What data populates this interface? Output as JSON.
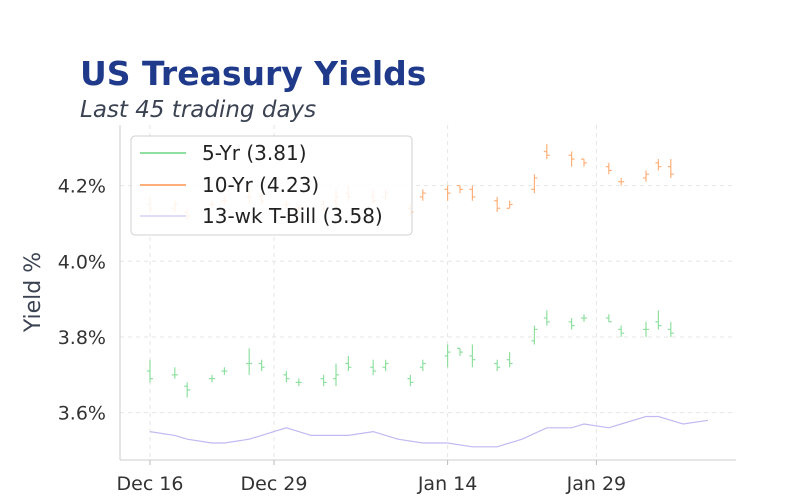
{
  "chart_data": {
    "type": "ohlc",
    "title": "US Treasury Yields",
    "subtitle": "Last 45 trading days",
    "xlabel": "",
    "ylabel": "Yield %",
    "x_tick_labels": [
      "Dec 16",
      "Dec 29",
      "Jan 14",
      "Jan 29"
    ],
    "x_tick_index": [
      0,
      10,
      24,
      36
    ],
    "y_ticks": [
      3.6,
      3.8,
      4.0,
      4.2
    ],
    "y_tick_labels": [
      "3.6%",
      "3.8%",
      "4.0%",
      "4.2%"
    ],
    "ylim": [
      3.475,
      4.36
    ],
    "grid": true,
    "legend_position": "top-left",
    "colors": {
      "five_yr": "#8fe0a0",
      "ten_yr": "#ffb07a",
      "tbill": "#c4b8f2",
      "title": "#1f3a8a"
    },
    "series": [
      {
        "name": "5-Yr (3.81)",
        "kind": "ohlc",
        "color": "#8fe0a0",
        "ohlc": [
          [
            3.71,
            3.74,
            3.68,
            3.69
          ],
          [
            3.7,
            3.72,
            3.69,
            3.7
          ],
          [
            3.67,
            3.68,
            3.64,
            3.66
          ],
          [
            3.69,
            3.7,
            3.68,
            3.69
          ],
          [
            3.71,
            3.72,
            3.7,
            3.71
          ],
          [
            3.73,
            3.77,
            3.7,
            3.73
          ],
          [
            3.73,
            3.74,
            3.71,
            3.72
          ],
          [
            3.7,
            3.71,
            3.68,
            3.69
          ],
          [
            3.68,
            3.69,
            3.67,
            3.68
          ],
          [
            3.69,
            3.7,
            3.67,
            3.68
          ],
          [
            3.69,
            3.73,
            3.67,
            3.7
          ],
          [
            3.73,
            3.75,
            3.71,
            3.72
          ],
          [
            3.72,
            3.74,
            3.7,
            3.71
          ],
          [
            3.72,
            3.74,
            3.71,
            3.73
          ],
          [
            3.69,
            3.7,
            3.67,
            3.68
          ],
          [
            3.72,
            3.74,
            3.71,
            3.73
          ],
          [
            3.75,
            3.78,
            3.72,
            3.76
          ],
          [
            3.77,
            3.77,
            3.75,
            3.76
          ],
          [
            3.75,
            3.78,
            3.72,
            3.74
          ],
          [
            3.73,
            3.74,
            3.71,
            3.72
          ],
          [
            3.74,
            3.76,
            3.72,
            3.73
          ],
          [
            3.79,
            3.83,
            3.78,
            3.82
          ],
          [
            3.85,
            3.87,
            3.83,
            3.84
          ],
          [
            3.84,
            3.85,
            3.82,
            3.83
          ],
          [
            3.85,
            3.86,
            3.84,
            3.85
          ],
          [
            3.85,
            3.86,
            3.84,
            3.84
          ],
          [
            3.82,
            3.83,
            3.8,
            3.81
          ],
          [
            3.82,
            3.84,
            3.8,
            3.82
          ],
          [
            3.84,
            3.87,
            3.82,
            3.83
          ],
          [
            3.82,
            3.84,
            3.8,
            3.81
          ]
        ]
      },
      {
        "name": "10-Yr (4.23)",
        "kind": "ohlc",
        "color": "#ffb07a",
        "ohlc": [
          [
            4.15,
            4.17,
            4.13,
            4.14
          ],
          [
            4.14,
            4.16,
            4.13,
            4.15
          ],
          [
            4.13,
            4.14,
            4.11,
            4.12
          ],
          [
            4.15,
            4.16,
            4.14,
            4.15
          ],
          [
            4.16,
            4.17,
            4.15,
            4.16
          ],
          [
            4.17,
            4.19,
            4.15,
            4.17
          ],
          [
            4.17,
            4.18,
            4.15,
            4.16
          ],
          [
            4.15,
            4.16,
            4.14,
            4.15
          ],
          [
            4.14,
            4.15,
            4.13,
            4.14
          ],
          [
            4.15,
            4.16,
            4.13,
            4.14
          ],
          [
            4.16,
            4.19,
            4.14,
            4.17
          ],
          [
            4.18,
            4.2,
            4.16,
            4.17
          ],
          [
            4.17,
            4.19,
            4.15,
            4.16
          ],
          [
            4.17,
            4.19,
            4.16,
            4.18
          ],
          [
            4.14,
            4.15,
            4.12,
            4.13
          ],
          [
            4.17,
            4.19,
            4.16,
            4.18
          ],
          [
            4.19,
            4.2,
            4.16,
            4.18
          ],
          [
            4.2,
            4.2,
            4.18,
            4.19
          ],
          [
            4.19,
            4.2,
            4.16,
            4.17
          ],
          [
            4.16,
            4.17,
            4.13,
            4.14
          ],
          [
            4.14,
            4.16,
            4.14,
            4.15
          ],
          [
            4.19,
            4.23,
            4.18,
            4.22
          ],
          [
            4.29,
            4.31,
            4.27,
            4.28
          ],
          [
            4.28,
            4.29,
            4.25,
            4.27
          ],
          [
            4.27,
            4.27,
            4.25,
            4.26
          ],
          [
            4.25,
            4.26,
            4.23,
            4.24
          ],
          [
            4.21,
            4.22,
            4.2,
            4.21
          ],
          [
            4.22,
            4.24,
            4.21,
            4.23
          ],
          [
            4.26,
            4.27,
            4.24,
            4.25
          ],
          [
            4.25,
            4.27,
            4.22,
            4.23
          ]
        ]
      },
      {
        "name": "13-wk T-Bill (3.58)",
        "kind": "line",
        "color": "#c4b8f2",
        "x": [
          0,
          2,
          3,
          5,
          6,
          8,
          10,
          11,
          13,
          16,
          18,
          20,
          22,
          23,
          24,
          26,
          28,
          30,
          32,
          34,
          35,
          37,
          38,
          40,
          41,
          42,
          43,
          45
        ],
        "values": [
          3.55,
          3.54,
          3.53,
          3.52,
          3.52,
          3.53,
          3.55,
          3.56,
          3.54,
          3.54,
          3.55,
          3.53,
          3.52,
          3.52,
          3.52,
          3.51,
          3.51,
          3.53,
          3.56,
          3.56,
          3.57,
          3.56,
          3.57,
          3.59,
          3.59,
          3.58,
          3.57,
          3.58
        ]
      }
    ],
    "x_positions": [
      0,
      2,
      3,
      5,
      6,
      8,
      9,
      11,
      12,
      14,
      15,
      16,
      18,
      19,
      21,
      22,
      24,
      25,
      26,
      28,
      29,
      31,
      32,
      34,
      35,
      37,
      38,
      40,
      41,
      42
    ]
  }
}
